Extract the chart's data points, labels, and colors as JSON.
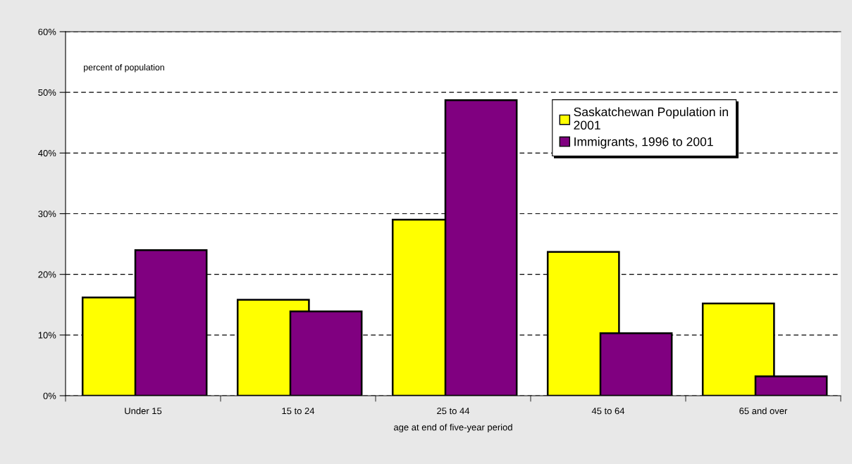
{
  "chart_data": {
    "type": "bar",
    "xlabel": "age at end of five-year period",
    "annotations": [
      "percent of population"
    ],
    "categories": [
      "Under 15",
      "15 to 24",
      "25 to 44",
      "45 to 64",
      "65 and over"
    ],
    "series": [
      {
        "name": "Saskatchewan Population in 2001",
        "color": "#ffff00",
        "values": [
          16.2,
          15.8,
          29.0,
          23.7,
          15.2
        ]
      },
      {
        "name": "Immigrants, 1996 to 2001",
        "color": "#800080",
        "values": [
          24.0,
          13.9,
          48.7,
          10.3,
          3.2
        ]
      }
    ],
    "ylim": [
      0,
      60
    ],
    "yticks": [
      {
        "value": 0,
        "label": "0%"
      },
      {
        "value": 10,
        "label": "10%"
      },
      {
        "value": 20,
        "label": "20%"
      },
      {
        "value": 30,
        "label": "30%"
      },
      {
        "value": 40,
        "label": "40%"
      },
      {
        "value": 50,
        "label": "50%"
      },
      {
        "value": 60,
        "label": "60%"
      }
    ],
    "grid": "y",
    "legend": "top right"
  }
}
